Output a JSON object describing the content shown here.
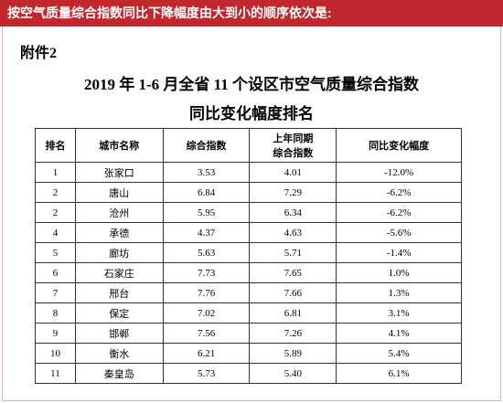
{
  "banner": "按空气质量综合指数同比下降幅度由大到小的顺序依次是:",
  "attachment": "附件2",
  "title_line1": "2019 年 1-6 月全省 11 个设区市空气质量综合指数",
  "title_line2": "同比变化幅度排名",
  "table": {
    "header": [
      "排名",
      "城市名称",
      "综合指数",
      [
        "上年同期",
        "综合指数"
      ],
      "同比变化幅度"
    ],
    "rows": [
      [
        "1",
        "张家口",
        "3.53",
        "4.01",
        "-12.0%"
      ],
      [
        "2",
        "唐山",
        "6.84",
        "7.29",
        "-6.2%"
      ],
      [
        "2",
        "沧州",
        "5.95",
        "6.34",
        "-6.2%"
      ],
      [
        "4",
        "承德",
        "4.37",
        "4.63",
        "-5.6%"
      ],
      [
        "5",
        "廊坊",
        "5.63",
        "5.71",
        "-1.4%"
      ],
      [
        "6",
        "石家庄",
        "7.73",
        "7.65",
        "1.0%"
      ],
      [
        "7",
        "邢台",
        "7.76",
        "7.66",
        "1.3%"
      ],
      [
        "8",
        "保定",
        "7.02",
        "6.81",
        "3.1%"
      ],
      [
        "9",
        "邯郸",
        "7.56",
        "7.26",
        "4.1%"
      ],
      [
        "10",
        "衡水",
        "6.21",
        "5.89",
        "5.4%"
      ],
      [
        "11",
        "秦皇岛",
        "5.73",
        "5.40",
        "6.1%"
      ]
    ]
  }
}
